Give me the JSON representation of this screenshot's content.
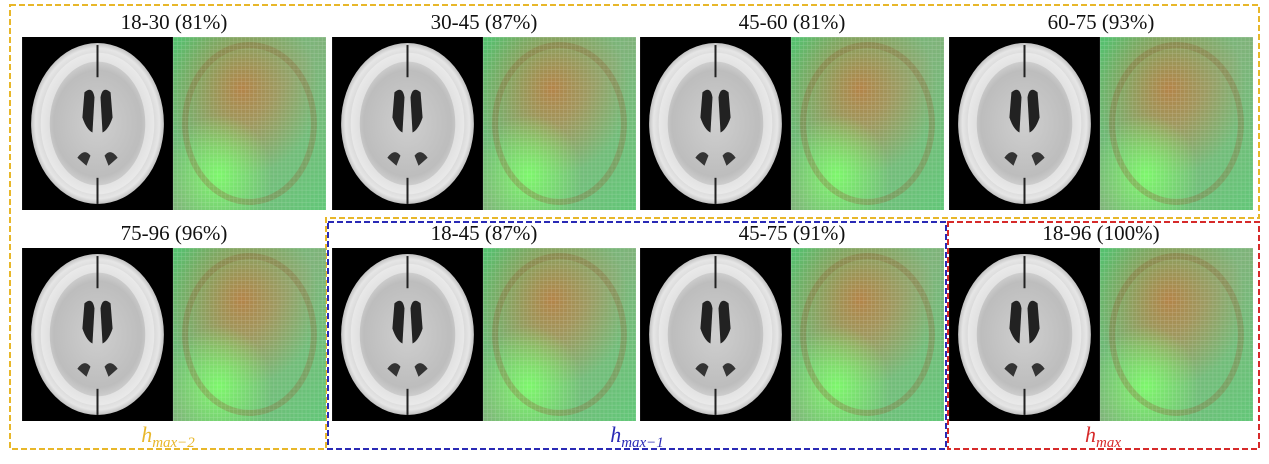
{
  "panels": [
    {
      "label": "18-30 (81%)"
    },
    {
      "label": "30-45 (87%)"
    },
    {
      "label": "45-60 (81%)"
    },
    {
      "label": "60-75 (93%)"
    },
    {
      "label": "75-96 (96%)"
    },
    {
      "label": "18-45 (87%)"
    },
    {
      "label": "45-75 (91%)"
    },
    {
      "label": "18-96 (100%)"
    }
  ],
  "groups": [
    {
      "symbol": "h",
      "subscript": "max−2"
    },
    {
      "symbol": "h",
      "subscript": "max−1"
    },
    {
      "symbol": "h",
      "subscript": "max"
    }
  ]
}
